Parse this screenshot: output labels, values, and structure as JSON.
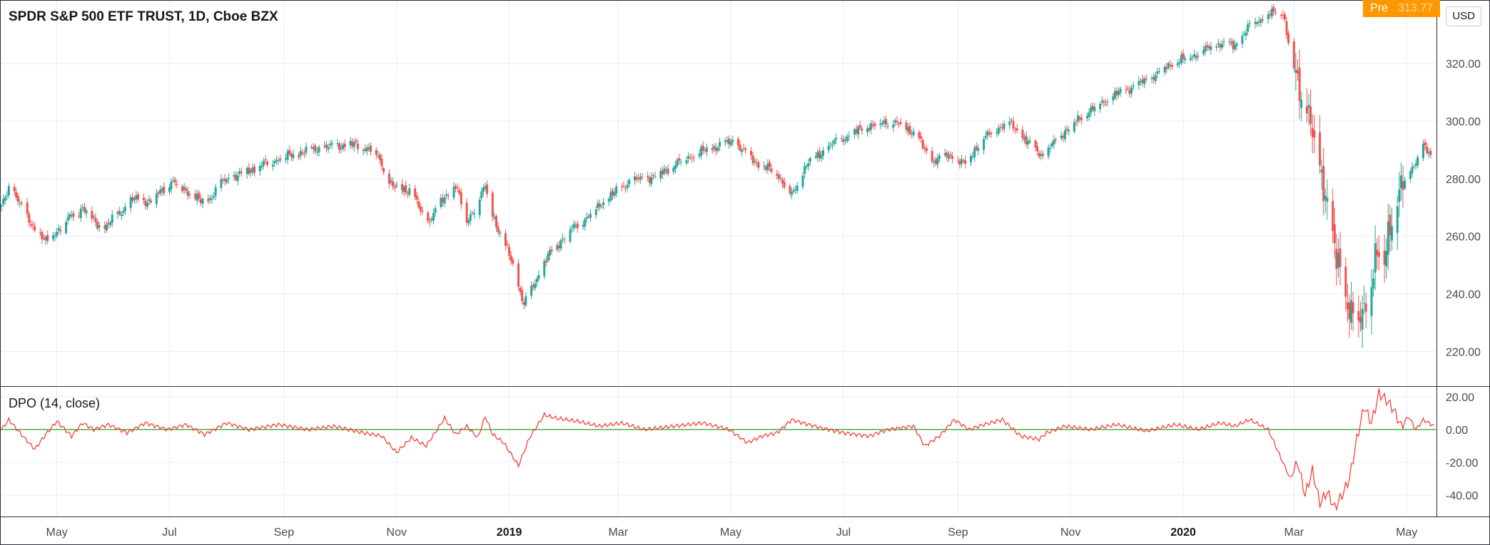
{
  "header": {
    "title": "SPDR S&P 500 ETF TRUST, 1D, Cboe BZX",
    "pre_label": "Pre",
    "pre_value": "313.77",
    "currency": "USD"
  },
  "colors": {
    "up": "#26a69a",
    "down": "#ef5350",
    "dpo_line": "#f44336",
    "zero_line": "#4caf50",
    "grid": "#e6eef4"
  },
  "chart_data": [
    {
      "type": "candlestick",
      "title": "SPDR S&P 500 ETF TRUST, 1D, Cboe BZX",
      "ylim": [
        208,
        342
      ],
      "y_ticks": [
        220,
        240,
        260,
        280,
        300,
        320
      ],
      "y_tick_labels": [
        "220.00",
        "240.00",
        "260.00",
        "280.00",
        "300.00",
        "320.00"
      ],
      "x_ticks": [
        "May",
        "Jul",
        "Sep",
        "Nov",
        "2019",
        "Mar",
        "May",
        "Jul",
        "Sep",
        "Nov",
        "2020",
        "Mar",
        "May"
      ],
      "x_tick_days": [
        30,
        91,
        153,
        214,
        275,
        334,
        395,
        456,
        518,
        579,
        640,
        700,
        761
      ],
      "x_range_days": [
        0,
        776
      ],
      "grid": true,
      "close_anchors": [
        {
          "day": 0,
          "close": 270
        },
        {
          "day": 5,
          "close": 278
        },
        {
          "day": 14,
          "close": 266
        },
        {
          "day": 24,
          "close": 258
        },
        {
          "day": 36,
          "close": 266
        },
        {
          "day": 44,
          "close": 270
        },
        {
          "day": 55,
          "close": 262
        },
        {
          "day": 62,
          "close": 267
        },
        {
          "day": 72,
          "close": 273
        },
        {
          "day": 80,
          "close": 272
        },
        {
          "day": 92,
          "close": 279
        },
        {
          "day": 100,
          "close": 276
        },
        {
          "day": 110,
          "close": 271
        },
        {
          "day": 120,
          "close": 279
        },
        {
          "day": 138,
          "close": 284
        },
        {
          "day": 150,
          "close": 287
        },
        {
          "day": 168,
          "close": 290
        },
        {
          "day": 188,
          "close": 292
        },
        {
          "day": 202,
          "close": 290
        },
        {
          "day": 212,
          "close": 277
        },
        {
          "day": 222,
          "close": 276
        },
        {
          "day": 230,
          "close": 264
        },
        {
          "day": 236,
          "close": 270
        },
        {
          "day": 246,
          "close": 278
        },
        {
          "day": 252,
          "close": 265
        },
        {
          "day": 262,
          "close": 277
        },
        {
          "day": 268,
          "close": 264
        },
        {
          "day": 276,
          "close": 252
        },
        {
          "day": 283,
          "close": 236
        },
        {
          "day": 288,
          "close": 243
        },
        {
          "day": 296,
          "close": 253
        },
        {
          "day": 306,
          "close": 261
        },
        {
          "day": 316,
          "close": 266
        },
        {
          "day": 326,
          "close": 272
        },
        {
          "day": 340,
          "close": 279
        },
        {
          "day": 355,
          "close": 281
        },
        {
          "day": 370,
          "close": 287
        },
        {
          "day": 382,
          "close": 290
        },
        {
          "day": 396,
          "close": 293
        },
        {
          "day": 410,
          "close": 285
        },
        {
          "day": 420,
          "close": 282
        },
        {
          "day": 428,
          "close": 274
        },
        {
          "day": 436,
          "close": 285
        },
        {
          "day": 450,
          "close": 292
        },
        {
          "day": 468,
          "close": 298
        },
        {
          "day": 482,
          "close": 300
        },
        {
          "day": 495,
          "close": 296
        },
        {
          "day": 503,
          "close": 286
        },
        {
          "day": 513,
          "close": 288
        },
        {
          "day": 522,
          "close": 285
        },
        {
          "day": 530,
          "close": 293
        },
        {
          "day": 545,
          "close": 300
        },
        {
          "day": 558,
          "close": 291
        },
        {
          "day": 564,
          "close": 288
        },
        {
          "day": 575,
          "close": 296
        },
        {
          "day": 590,
          "close": 304
        },
        {
          "day": 606,
          "close": 310
        },
        {
          "day": 620,
          "close": 314
        },
        {
          "day": 634,
          "close": 320
        },
        {
          "day": 646,
          "close": 323
        },
        {
          "day": 660,
          "close": 327
        },
        {
          "day": 668,
          "close": 326
        },
        {
          "day": 676,
          "close": 333
        },
        {
          "day": 686,
          "close": 337
        },
        {
          "day": 694,
          "close": 338
        },
        {
          "day": 698,
          "close": 324
        },
        {
          "day": 702,
          "close": 312
        },
        {
          "day": 708,
          "close": 304
        },
        {
          "day": 712,
          "close": 286
        },
        {
          "day": 718,
          "close": 274
        },
        {
          "day": 722,
          "close": 254
        },
        {
          "day": 727,
          "close": 240
        },
        {
          "day": 731,
          "close": 236
        },
        {
          "day": 735,
          "close": 228
        },
        {
          "day": 739,
          "close": 236
        },
        {
          "day": 744,
          "close": 254
        },
        {
          "day": 749,
          "close": 251
        },
        {
          "day": 752,
          "close": 266
        },
        {
          "day": 758,
          "close": 276
        },
        {
          "day": 764,
          "close": 284
        },
        {
          "day": 770,
          "close": 291
        },
        {
          "day": 776,
          "close": 286
        }
      ]
    },
    {
      "type": "line",
      "title": "DPO (14, close)",
      "ylim": [
        -53,
        26
      ],
      "y_ticks": [
        -40,
        -20,
        0,
        20
      ],
      "y_tick_labels": [
        "-40.00",
        "-20.00",
        "0.00",
        "20.00"
      ],
      "zero_line": 0,
      "x_range_days": [
        0,
        776
      ],
      "series": [
        {
          "day": [
            0,
            4,
            10,
            18,
            24,
            30,
            38,
            44,
            50,
            58,
            68,
            78,
            90,
            100,
            110,
            122,
            134,
            150,
            166,
            180,
            196,
            206,
            214,
            222,
            230,
            236,
            240,
            246,
            252,
            258,
            262,
            266,
            272,
            280,
            286,
            294,
            300,
            312,
            324,
            336,
            348,
            364,
            380,
            394,
            404,
            412,
            420,
            428,
            434,
            444,
            456,
            470,
            480,
            494,
            500,
            508,
            516,
            524,
            532,
            542,
            552,
            562,
            566,
            576,
            590,
            604,
            620,
            636,
            648,
            660,
            668,
            676,
            686,
            692,
            698,
            702,
            706,
            710,
            714,
            718,
            722,
            726,
            730,
            734,
            738,
            742,
            746,
            750,
            754,
            758,
            762,
            766,
            770,
            776
          ],
          "value": [
            0,
            6,
            -2,
            -12,
            -3,
            5,
            -4,
            4,
            0,
            3,
            -2,
            4,
            0,
            3,
            -3,
            4,
            0,
            3,
            0,
            2,
            -2,
            -4,
            -14,
            -5,
            -10,
            0,
            7,
            -3,
            2,
            -5,
            8,
            -3,
            -8,
            -22,
            -5,
            9,
            7,
            5,
            2,
            4,
            0,
            2,
            4,
            0,
            -8,
            -4,
            -2,
            6,
            4,
            1,
            -2,
            -4,
            0,
            2,
            -10,
            -4,
            6,
            0,
            3,
            6,
            -4,
            -6,
            -2,
            2,
            0,
            3,
            -1,
            3,
            0,
            4,
            2,
            6,
            0,
            -15,
            -30,
            -20,
            -40,
            -25,
            -45,
            -38,
            -48,
            -40,
            -30,
            -6,
            14,
            4,
            22,
            18,
            12,
            2,
            8,
            0,
            6,
            2
          ]
        }
      ]
    }
  ]
}
